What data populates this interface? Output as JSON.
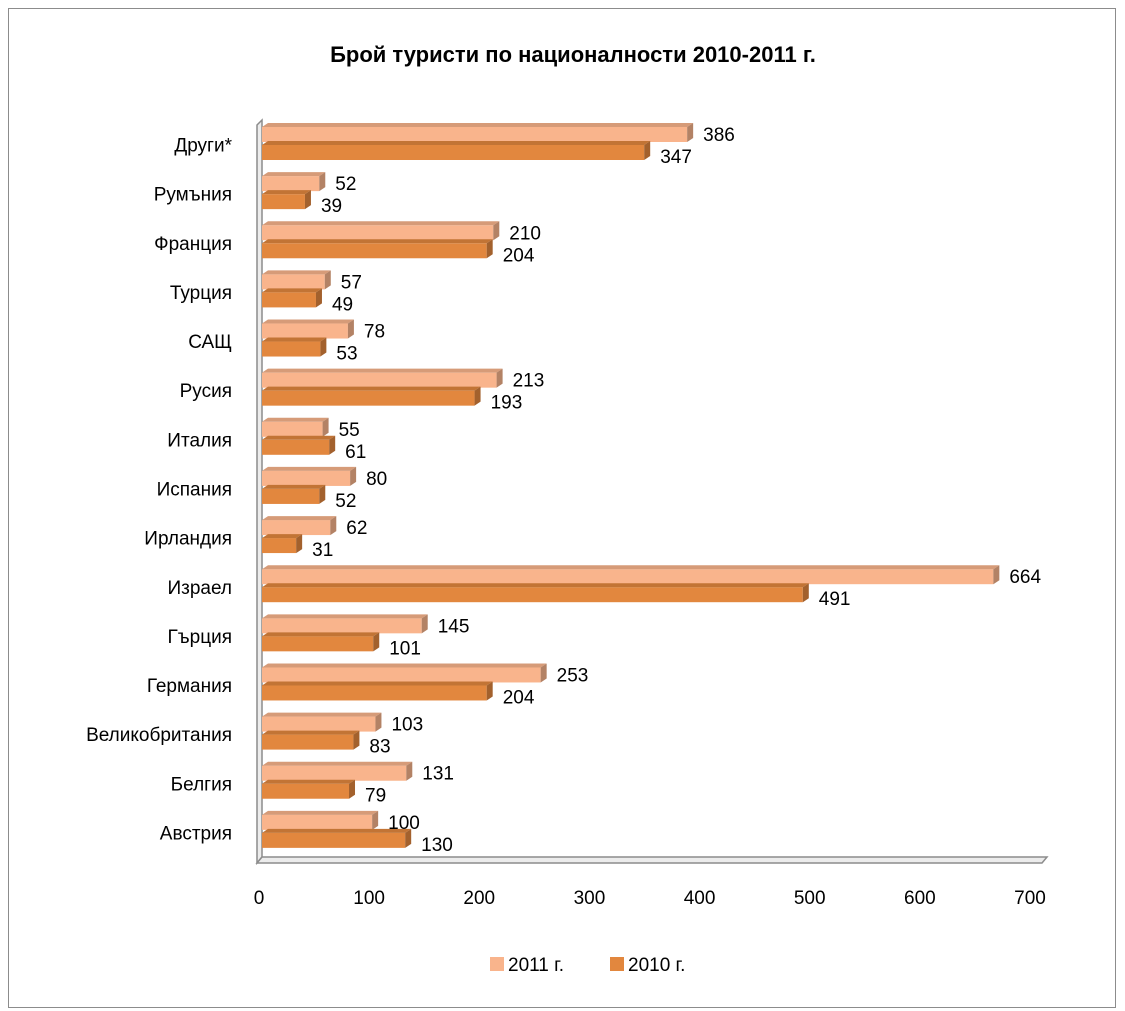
{
  "chart_data": {
    "type": "bar",
    "orientation": "horizontal",
    "title": "Брой туристи по националности 2010-2011 г.",
    "xlabel": "",
    "ylabel": "",
    "xlim": [
      0,
      700
    ],
    "x_ticks": [
      "0",
      "100",
      "200",
      "300",
      "400",
      "500",
      "600",
      "700"
    ],
    "grid": false,
    "legend_position": "bottom",
    "categories": [
      "Австрия",
      "Белгия",
      "Великобритания",
      "Германия",
      "Гърция",
      "Израел",
      "Ирландия",
      "Испания",
      "Италия",
      "Русия",
      "САЩ",
      "Турция",
      "Франция",
      "Румъния",
      "Други*"
    ],
    "series": [
      {
        "name": "2011 г.",
        "color": "#F9B48C",
        "values": [
          100,
          131,
          103,
          253,
          145,
          664,
          62,
          80,
          55,
          213,
          78,
          57,
          210,
          52,
          386
        ]
      },
      {
        "name": "2010 г.",
        "color": "#E2873E",
        "values": [
          130,
          79,
          83,
          204,
          101,
          491,
          31,
          52,
          61,
          193,
          53,
          49,
          204,
          39,
          347
        ]
      }
    ]
  }
}
